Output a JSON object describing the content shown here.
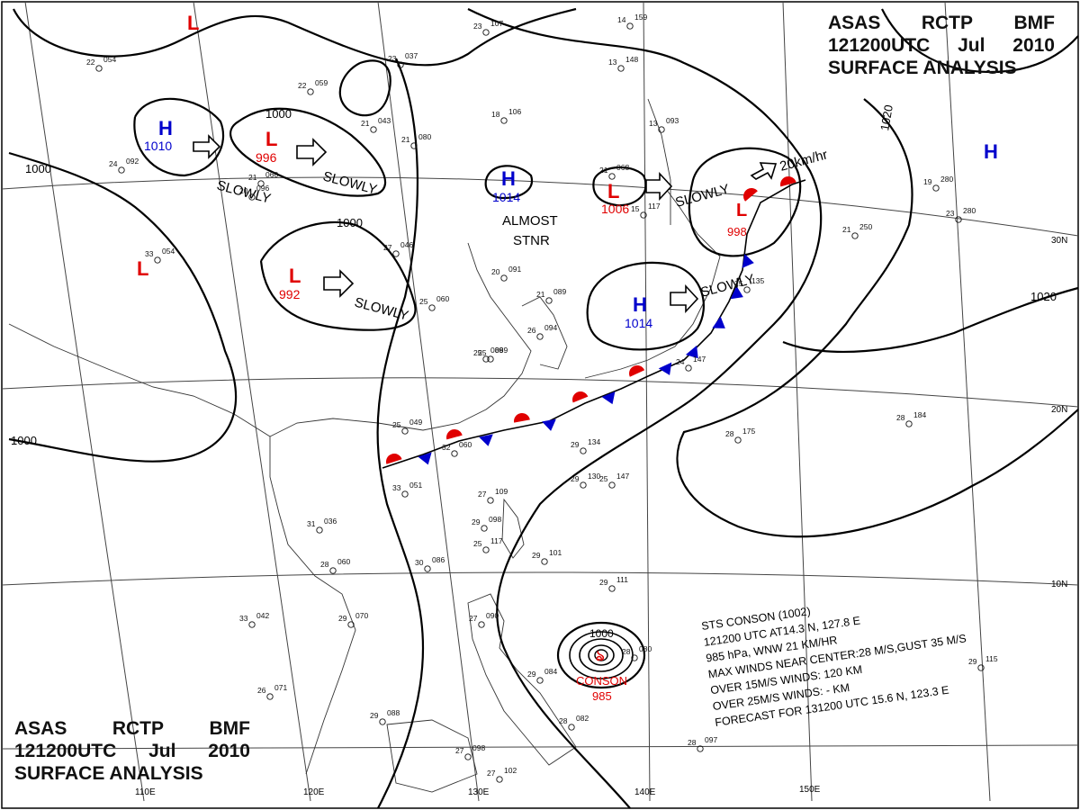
{
  "header": {
    "agency": [
      "ASAS",
      "RCTP",
      "BMF"
    ],
    "datetime": [
      "121200UTC",
      "Jul",
      "2010"
    ],
    "product": "SURFACE ANALYSIS"
  },
  "graticule": {
    "lon_labels": [
      "110E",
      "120E",
      "130E",
      "140E",
      "150E"
    ],
    "lat_labels": [
      "30N",
      "20N",
      "10N"
    ]
  },
  "isobars": [
    "1000",
    "1000",
    "1000",
    "1000",
    "1020",
    "1020"
  ],
  "pressure_centers": [
    {
      "type": "L",
      "value": "",
      "color": "#e00000"
    },
    {
      "type": "H",
      "value": "1010",
      "color": "#0000cc"
    },
    {
      "type": "L",
      "value": "996",
      "color": "#e00000"
    },
    {
      "type": "L",
      "value": "",
      "color": "#e00000"
    },
    {
      "type": "L",
      "value": "992",
      "color": "#e00000"
    },
    {
      "type": "H",
      "value": "1014",
      "color": "#0000cc"
    },
    {
      "type": "L",
      "value": "1006",
      "color": "#e00000"
    },
    {
      "type": "L",
      "value": "998",
      "color": "#e00000"
    },
    {
      "type": "H",
      "value": "1014",
      "color": "#0000cc"
    },
    {
      "type": "H",
      "value": "",
      "color": "#0000cc"
    }
  ],
  "motion_labels": [
    "SLOWLY",
    "SLOWLY",
    "SLOWLY",
    "SLOWLY",
    "SLOWLY",
    "20km/hr",
    "ALMOST",
    "STNR"
  ],
  "typhoon": {
    "name": "CONSON",
    "pressure": "985",
    "isobar": "1000",
    "bulletin": [
      "STS  CONSON  (1002)",
      "121200 UTC  AT14.3 N,  127.8 E",
      "985 hPa, WNW  21 KM/HR",
      "MAX WINDS NEAR CENTER:28 M/S,GUST 35 M/S",
      "OVER 15M/S WINDS: 120 KM",
      "OVER 25M/S WINDS: - KM",
      "FORECAST FOR 131200 UTC 15.6 N, 123.3 E"
    ]
  },
  "station_plots": [
    "23 107",
    "22 054",
    "22 059",
    "24 092",
    "21 080",
    "18 106",
    "21 043",
    "23 037",
    "21 060",
    "20 096",
    "29 070",
    "27 046",
    "33 054",
    "25 049",
    "32 060",
    "33 051",
    "25 060",
    "20 091",
    "25 089",
    "21 089",
    "26 094",
    "25 089",
    "21 068",
    "25 135",
    "24 147",
    "28 184",
    "28 175",
    "19 280",
    "23 280",
    "21 250",
    "29 134",
    "29 130",
    "25 147",
    "27 109",
    "29 098",
    "25 117",
    "29 101",
    "31 036",
    "28 060",
    "30 086",
    "33 042",
    "26 071",
    "29 088",
    "27 102",
    "27 098",
    "29 084",
    "28 082",
    "28 080",
    "28 097",
    "29 111",
    "27 090",
    "29 115",
    "13 148",
    "14 159",
    "13 093",
    "15 117"
  ],
  "colors": {
    "low": "#e00000",
    "high": "#0000cc",
    "warm_front": "#e00000",
    "cold_front": "#0000cc",
    "isobar": "#000000",
    "coast": "#333333",
    "grid": "#444444"
  }
}
